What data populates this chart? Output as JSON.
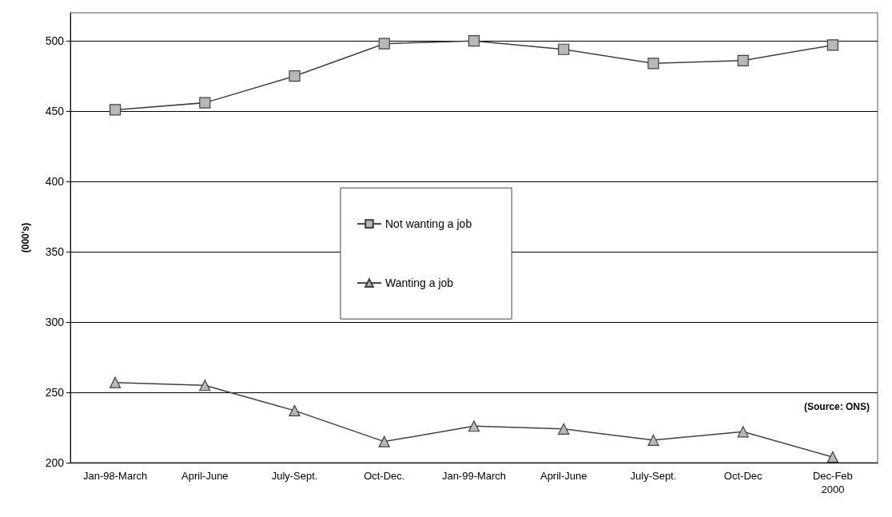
{
  "chart_data": {
    "type": "line",
    "ylabel": "(000's)",
    "categories": [
      "Jan-98-March",
      "April-June",
      "July-Sept.",
      "Oct-Dec.",
      "Jan-99-March",
      "April-June",
      "July-Sept.",
      "Oct-Dec",
      "Dec-Feb\n2000"
    ],
    "series": [
      {
        "name": "Not wanting a job",
        "color": "#404040",
        "marker": "square",
        "values": [
          451,
          456,
          475,
          498,
          500,
          494,
          484,
          486,
          497
        ]
      },
      {
        "name": "Wanting a job",
        "color": "#404040",
        "marker": "triangle",
        "values": [
          257,
          255,
          237,
          215,
          226,
          224,
          216,
          222,
          204
        ]
      }
    ],
    "ylim": [
      200,
      520
    ],
    "yticks": [
      200,
      250,
      300,
      350,
      400,
      450,
      500
    ],
    "grid": "y",
    "legend": "center",
    "line_style": "solid",
    "annotations": [
      "(Source: ONS)"
    ]
  }
}
